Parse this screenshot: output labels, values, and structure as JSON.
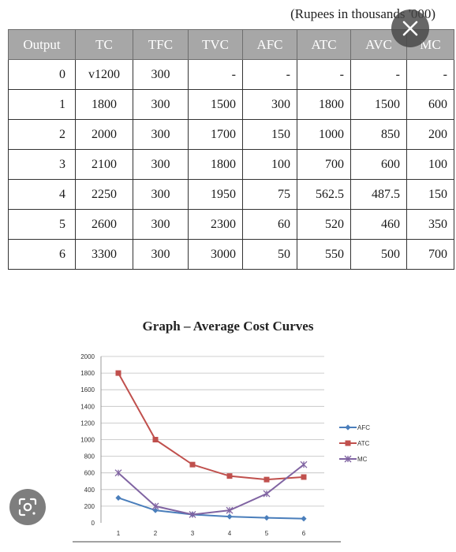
{
  "caption": "(Rupees in thousands '000)",
  "table": {
    "headers": [
      "Output",
      "TC",
      "TFC",
      "TVC",
      "AFC",
      "ATC",
      "AVC",
      "MC"
    ],
    "rows": [
      [
        "0",
        "v1200",
        "300",
        "-",
        "-",
        "-",
        "-",
        "-"
      ],
      [
        "1",
        "1800",
        "300",
        "1500",
        "300",
        "1800",
        "1500",
        "600"
      ],
      [
        "2",
        "2000",
        "300",
        "1700",
        "150",
        "1000",
        "850",
        "200"
      ],
      [
        "3",
        "2100",
        "300",
        "1800",
        "100",
        "700",
        "600",
        "100"
      ],
      [
        "4",
        "2250",
        "300",
        "1950",
        "75",
        "562.5",
        "487.5",
        "150"
      ],
      [
        "5",
        "2600",
        "300",
        "2300",
        "60",
        "520",
        "460",
        "350"
      ],
      [
        "6",
        "3300",
        "300",
        "3000",
        "50",
        "550",
        "500",
        "700"
      ]
    ]
  },
  "icons": {
    "close": "close-icon",
    "lens": "lens-icon"
  },
  "chart_data": {
    "type": "line",
    "title": "Graph – Average Cost Curves",
    "x": [
      1,
      2,
      3,
      4,
      5,
      6
    ],
    "x_tick_labels": [
      "1",
      "2",
      "3",
      "4",
      "5",
      "6"
    ],
    "y_tick_labels": [
      "0",
      "200",
      "400",
      "600",
      "800",
      "1000",
      "1200",
      "1400",
      "1600",
      "1800",
      "2000"
    ],
    "ylim": [
      0,
      2000
    ],
    "grid": true,
    "legend_position": "right",
    "series": [
      {
        "name": "AFC",
        "color": "#4a7ebb",
        "marker": "diamond",
        "values": [
          300,
          150,
          100,
          75,
          60,
          50
        ]
      },
      {
        "name": "ATC",
        "color": "#c0504d",
        "marker": "square",
        "values": [
          1800,
          1000,
          700,
          562.5,
          520,
          550
        ]
      },
      {
        "name": "MC",
        "color": "#8064a2",
        "marker": "cross",
        "values": [
          600,
          200,
          100,
          150,
          350,
          700
        ]
      }
    ]
  }
}
